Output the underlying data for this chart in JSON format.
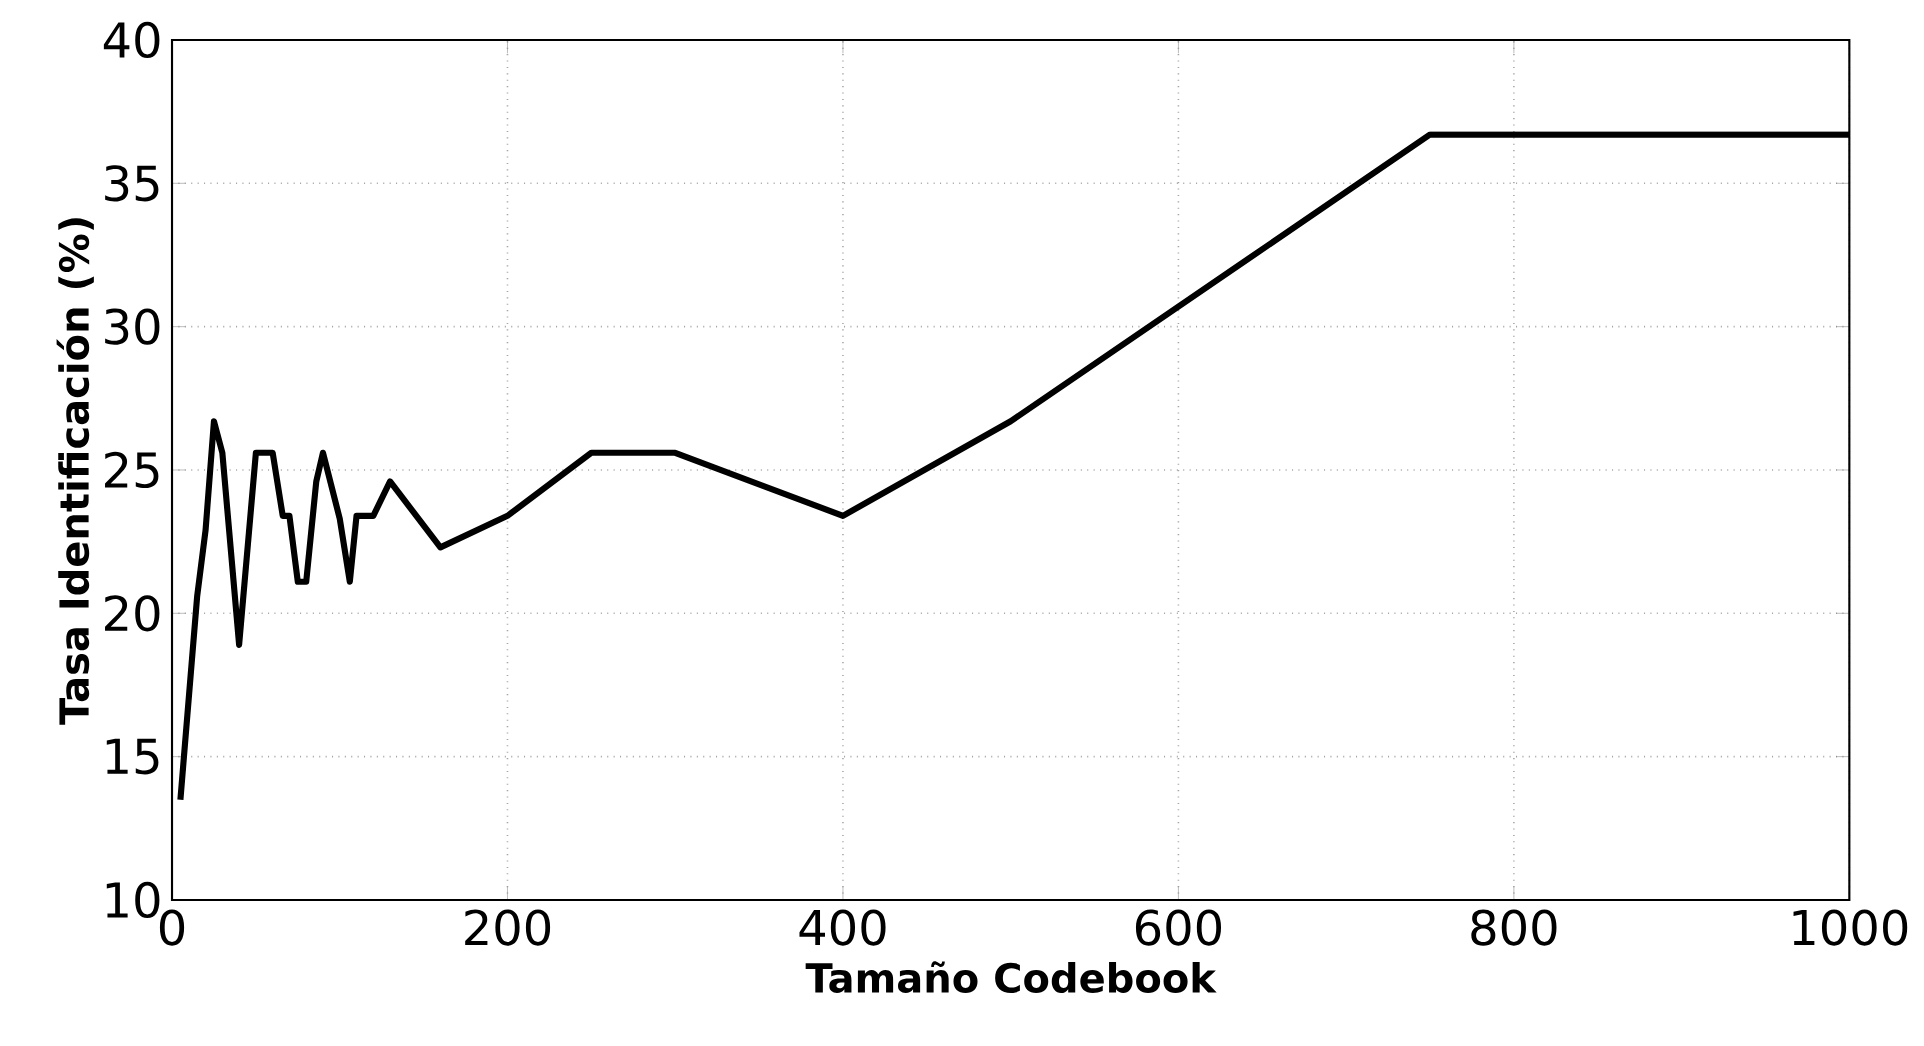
{
  "chart_data": {
    "type": "line",
    "xlabel": "Tamaño Codebook",
    "ylabel": "Tasa Identificación (%)",
    "x": [
      5,
      15,
      20,
      25,
      30,
      40,
      50,
      60,
      66,
      70,
      75,
      80,
      86,
      90,
      100,
      106,
      110,
      120,
      130,
      160,
      200,
      250,
      300,
      400,
      500,
      750,
      1000
    ],
    "series": [
      {
        "color": "#000000",
        "values": [
          13.5,
          20.6,
          22.9,
          26.7,
          25.6,
          18.9,
          25.6,
          25.6,
          23.4,
          23.4,
          21.1,
          21.1,
          24.6,
          25.6,
          23.3,
          21.1,
          23.4,
          23.4,
          24.6,
          22.3,
          23.4,
          25.6,
          25.6,
          23.4,
          26.7,
          36.7,
          36.7
        ]
      }
    ],
    "xlim": [
      0,
      1000
    ],
    "ylim": [
      10,
      40
    ],
    "xticks": [
      0,
      200,
      400,
      600,
      800,
      1000
    ],
    "yticks": [
      10,
      15,
      20,
      25,
      30,
      35,
      40
    ],
    "grid": true,
    "marker": "none",
    "line_style": "solid"
  }
}
